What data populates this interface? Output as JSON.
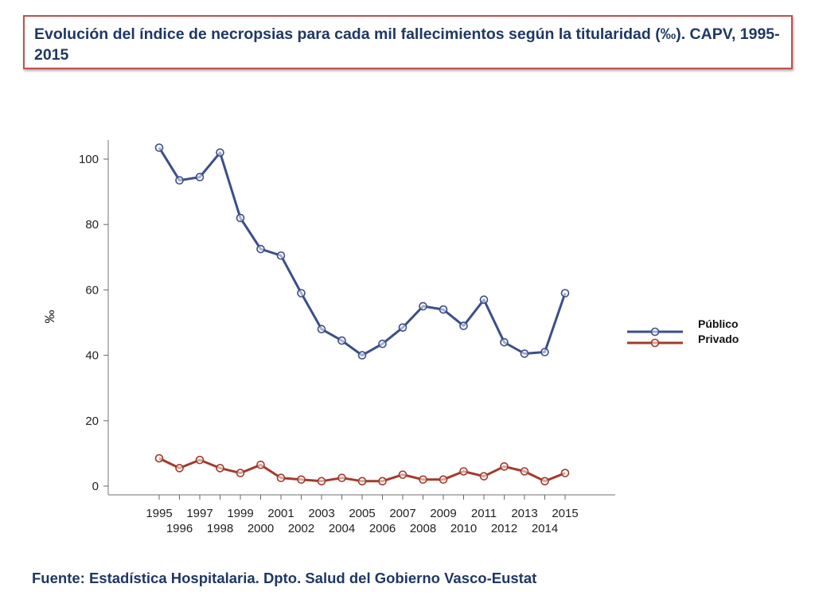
{
  "header": {
    "title": "Evolución del índice de necropsias para cada mil fallecimientos según la titularidad (‰). CAPV, 1995-2015"
  },
  "footer": {
    "source": "Fuente: Estadística Hospitalaria. Dpto. Salud del Gobierno Vasco-Eustat"
  },
  "colors": {
    "title_border": "#c0504d",
    "text": "#1f3864",
    "publico": "#3b4f8a",
    "privado": "#a23b2c"
  },
  "chart_data": {
    "type": "line",
    "title": "Evolución del índice de necropsias para cada mil fallecimientos según la titularidad (‰). CAPV, 1995-2015",
    "xlabel": "",
    "ylabel": "‰",
    "x": [
      1995,
      1996,
      1997,
      1998,
      1999,
      2000,
      2001,
      2002,
      2003,
      2004,
      2005,
      2006,
      2007,
      2008,
      2009,
      2010,
      2011,
      2012,
      2013,
      2014,
      2015
    ],
    "ylim": [
      -3,
      106
    ],
    "yticks": [
      0,
      20,
      40,
      60,
      80,
      100
    ],
    "grid": false,
    "legend_position": "right",
    "series": [
      {
        "name": "Público",
        "color": "#3b4f8a",
        "values": [
          103.5,
          93.5,
          94.5,
          102.0,
          82.0,
          72.5,
          70.5,
          59.0,
          48.0,
          44.5,
          40.0,
          43.5,
          48.5,
          55.0,
          54.0,
          49.0,
          57.0,
          44.0,
          40.5,
          41.0,
          59.0
        ]
      },
      {
        "name": "Privado",
        "color": "#a23b2c",
        "values": [
          8.5,
          5.5,
          8.0,
          5.5,
          4.0,
          6.5,
          2.5,
          2.0,
          1.5,
          2.5,
          1.5,
          1.5,
          3.5,
          2.0,
          2.0,
          4.5,
          3.0,
          6.0,
          4.5,
          1.5,
          4.0
        ]
      }
    ]
  }
}
